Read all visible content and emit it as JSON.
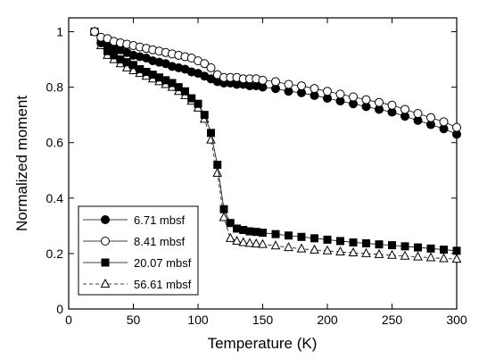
{
  "chart_data": {
    "type": "scatter",
    "xlabel": "Temperature (K)",
    "ylabel": "Normalized moment",
    "xlim": [
      0,
      300
    ],
    "ylim": [
      0,
      1.05
    ],
    "xticks": [
      "0",
      "50",
      "100",
      "150",
      "200",
      "250",
      "300"
    ],
    "yticks": [
      "0",
      "0.2",
      "0.4",
      "0.6",
      "0.8",
      "1"
    ],
    "grid": false,
    "legend_position": "bottom-left",
    "series": [
      {
        "name": "6.71 mbsf",
        "marker": "filled-circle",
        "line": "solid",
        "x": [
          20,
          25,
          30,
          35,
          40,
          45,
          50,
          55,
          60,
          65,
          70,
          75,
          80,
          85,
          90,
          95,
          100,
          105,
          110,
          115,
          120,
          125,
          130,
          135,
          140,
          145,
          150,
          160,
          170,
          180,
          190,
          200,
          210,
          220,
          230,
          240,
          250,
          260,
          270,
          280,
          290,
          300
        ],
        "y": [
          1.0,
          0.96,
          0.95,
          0.94,
          0.935,
          0.925,
          0.915,
          0.91,
          0.905,
          0.895,
          0.89,
          0.885,
          0.875,
          0.87,
          0.865,
          0.855,
          0.85,
          0.84,
          0.83,
          0.82,
          0.815,
          0.815,
          0.81,
          0.81,
          0.805,
          0.805,
          0.8,
          0.795,
          0.785,
          0.78,
          0.77,
          0.76,
          0.75,
          0.74,
          0.73,
          0.72,
          0.71,
          0.695,
          0.68,
          0.665,
          0.65,
          0.63
        ]
      },
      {
        "name": "8.41 mbsf",
        "marker": "open-circle",
        "line": "solid",
        "x": [
          20,
          25,
          30,
          35,
          40,
          45,
          50,
          55,
          60,
          65,
          70,
          75,
          80,
          85,
          90,
          95,
          100,
          105,
          110,
          115,
          120,
          125,
          130,
          135,
          140,
          145,
          150,
          160,
          170,
          180,
          190,
          200,
          210,
          220,
          230,
          240,
          250,
          260,
          270,
          280,
          290,
          300
        ],
        "y": [
          1.0,
          0.98,
          0.975,
          0.965,
          0.96,
          0.955,
          0.95,
          0.945,
          0.94,
          0.935,
          0.93,
          0.925,
          0.92,
          0.915,
          0.91,
          0.905,
          0.895,
          0.885,
          0.87,
          0.845,
          0.835,
          0.835,
          0.835,
          0.83,
          0.83,
          0.83,
          0.825,
          0.82,
          0.81,
          0.805,
          0.795,
          0.785,
          0.775,
          0.765,
          0.755,
          0.745,
          0.735,
          0.72,
          0.705,
          0.69,
          0.675,
          0.655
        ]
      },
      {
        "name": "20.07 mbsf",
        "marker": "filled-square",
        "line": "solid",
        "x": [
          20,
          25,
          30,
          35,
          40,
          45,
          50,
          55,
          60,
          65,
          70,
          75,
          80,
          85,
          90,
          95,
          100,
          105,
          110,
          115,
          120,
          125,
          130,
          135,
          140,
          145,
          150,
          160,
          170,
          180,
          190,
          200,
          210,
          220,
          230,
          240,
          250,
          260,
          270,
          280,
          290,
          300
        ],
        "y": [
          1.0,
          0.965,
          0.93,
          0.915,
          0.9,
          0.89,
          0.88,
          0.865,
          0.855,
          0.845,
          0.835,
          0.825,
          0.815,
          0.8,
          0.785,
          0.76,
          0.74,
          0.7,
          0.635,
          0.52,
          0.36,
          0.31,
          0.29,
          0.285,
          0.28,
          0.278,
          0.275,
          0.27,
          0.265,
          0.26,
          0.255,
          0.25,
          0.245,
          0.24,
          0.237,
          0.233,
          0.23,
          0.226,
          0.222,
          0.218,
          0.214,
          0.21
        ]
      },
      {
        "name": "56.61 mbsf",
        "marker": "open-triangle",
        "line": "dashed",
        "x": [
          20,
          25,
          30,
          35,
          40,
          45,
          50,
          55,
          60,
          65,
          70,
          75,
          80,
          85,
          90,
          95,
          100,
          105,
          110,
          115,
          120,
          125,
          130,
          135,
          140,
          145,
          150,
          160,
          170,
          180,
          190,
          200,
          210,
          220,
          230,
          240,
          250,
          260,
          270,
          280,
          290,
          300
        ],
        "y": [
          1.0,
          0.95,
          0.915,
          0.9,
          0.885,
          0.87,
          0.86,
          0.85,
          0.84,
          0.83,
          0.82,
          0.81,
          0.8,
          0.785,
          0.77,
          0.75,
          0.725,
          0.685,
          0.61,
          0.49,
          0.33,
          0.255,
          0.245,
          0.24,
          0.237,
          0.235,
          0.233,
          0.228,
          0.222,
          0.217,
          0.213,
          0.21,
          0.206,
          0.203,
          0.2,
          0.197,
          0.194,
          0.191,
          0.188,
          0.185,
          0.182,
          0.18
        ]
      }
    ]
  }
}
